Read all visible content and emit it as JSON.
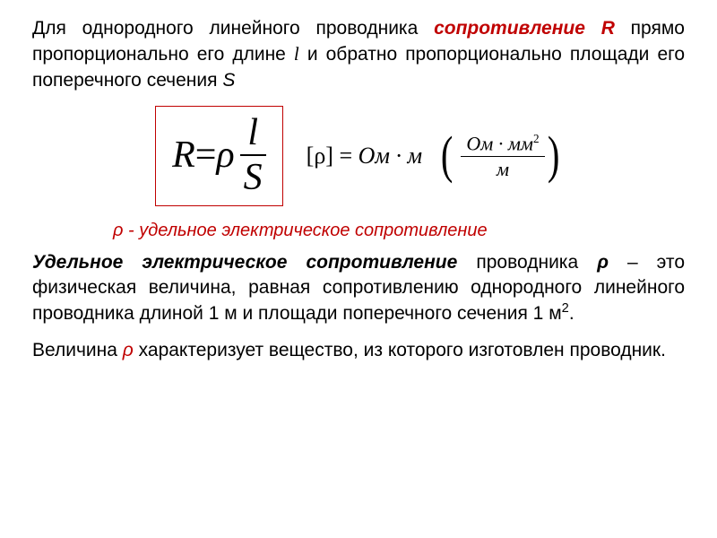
{
  "colors": {
    "accent": "#c00000",
    "text": "#000000",
    "bg": "#ffffff"
  },
  "p1": {
    "t1": "Для однородного линейного проводника ",
    "term": "сопротивление R",
    "t2": " прямо пропорционально его длине ",
    "lvar": "l",
    "t3": " и обратно пропорционально площади его поперечного сечения ",
    "svar": "S"
  },
  "formula": {
    "R": "R",
    "eq": " = ",
    "rho": "ρ",
    "num": "l",
    "den": "S",
    "unit_left": "[ρ]",
    "unit_eq": " = ",
    "unit_main": "Ом · м",
    "paren_num": "Ом · мм",
    "paren_num_sup": "2",
    "paren_den": "м"
  },
  "caption": {
    "rho": "ρ",
    "text": " - удельное электрическое сопротивление"
  },
  "p2": {
    "term": "Удельное электрическое сопротивление",
    "t1": " проводника ",
    "rho": "ρ",
    "t2": " – это физическая величина, равная сопротивлению однородного линейного проводника длиной 1 м и площади поперечного сечения 1 м",
    "sup": "2",
    "t3": "."
  },
  "p3": {
    "t1": "Величина ",
    "rho": "ρ",
    "t2": "  характеризует вещество, из которого изготовлен проводник."
  }
}
